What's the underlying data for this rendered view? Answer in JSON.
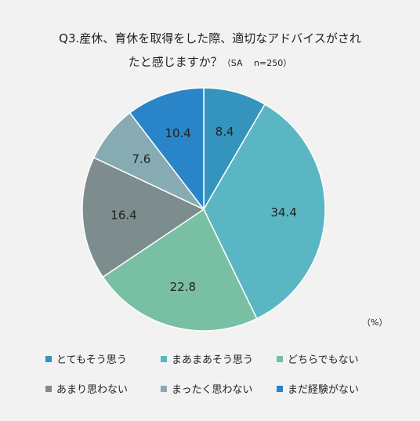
{
  "title_line1": "Q3.産休、育休を取得をした際、適切なアドバイスがされ",
  "title_line2": "たと感じますか？",
  "title_note": "（SA　 n=250）",
  "unit_label": "（%）",
  "chart_data": {
    "type": "pie",
    "title": "Q3.産休、育休を取得をした際、適切なアドバイスがされたと感じますか？（SA　 n=250）",
    "start": "top",
    "direction": "clockwise",
    "legend_position": "bottom",
    "categories": [
      "とてもそう思う",
      "まあまあそう思う",
      "どちらでもない",
      "あまり思わない",
      "まったく思わない",
      "まだ経験がない"
    ],
    "values": [
      8.4,
      34.4,
      22.8,
      16.4,
      7.6,
      10.4
    ],
    "colors": [
      "#3594bd",
      "#5ab6c2",
      "#79bfa4",
      "#7d8c8d",
      "#87abb3",
      "#2a84c8"
    ],
    "labels": [
      "8.4",
      "34.4",
      "22.8",
      "16.4",
      "7.6",
      "10.4"
    ]
  }
}
